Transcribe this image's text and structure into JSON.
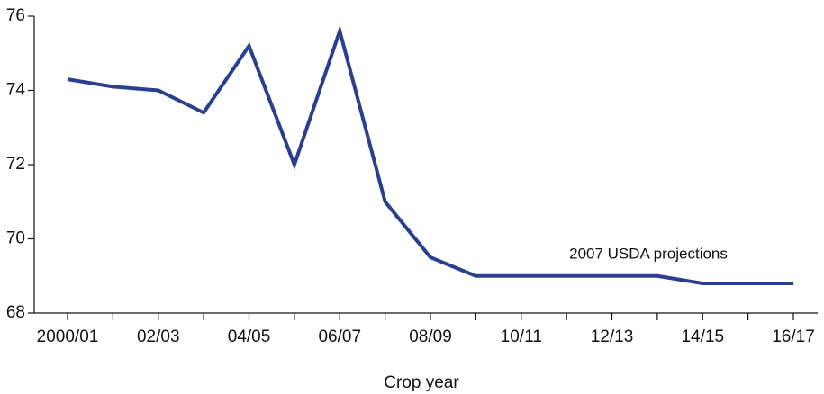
{
  "chart_data": {
    "type": "line",
    "x_label": "Crop year",
    "annotation": "2007 USDA projections",
    "categories": [
      "2000/01",
      null,
      "02/03",
      null,
      "04/05",
      null,
      "06/07",
      null,
      "08/09",
      null,
      "10/11",
      null,
      "12/13",
      null,
      "14/15",
      null,
      "16/17"
    ],
    "series": [
      {
        "name": null,
        "color": "#2b3f8f",
        "values": [
          74.3,
          74.1,
          74.0,
          73.4,
          75.2,
          72.0,
          75.6,
          71.0,
          69.5,
          69.0,
          69.0,
          69.0,
          69.0,
          69.0,
          68.8,
          68.8,
          68.8
        ]
      }
    ],
    "ylim": [
      68,
      76
    ],
    "yticks": [
      68,
      70,
      72,
      74,
      76
    ],
    "grid": false
  }
}
